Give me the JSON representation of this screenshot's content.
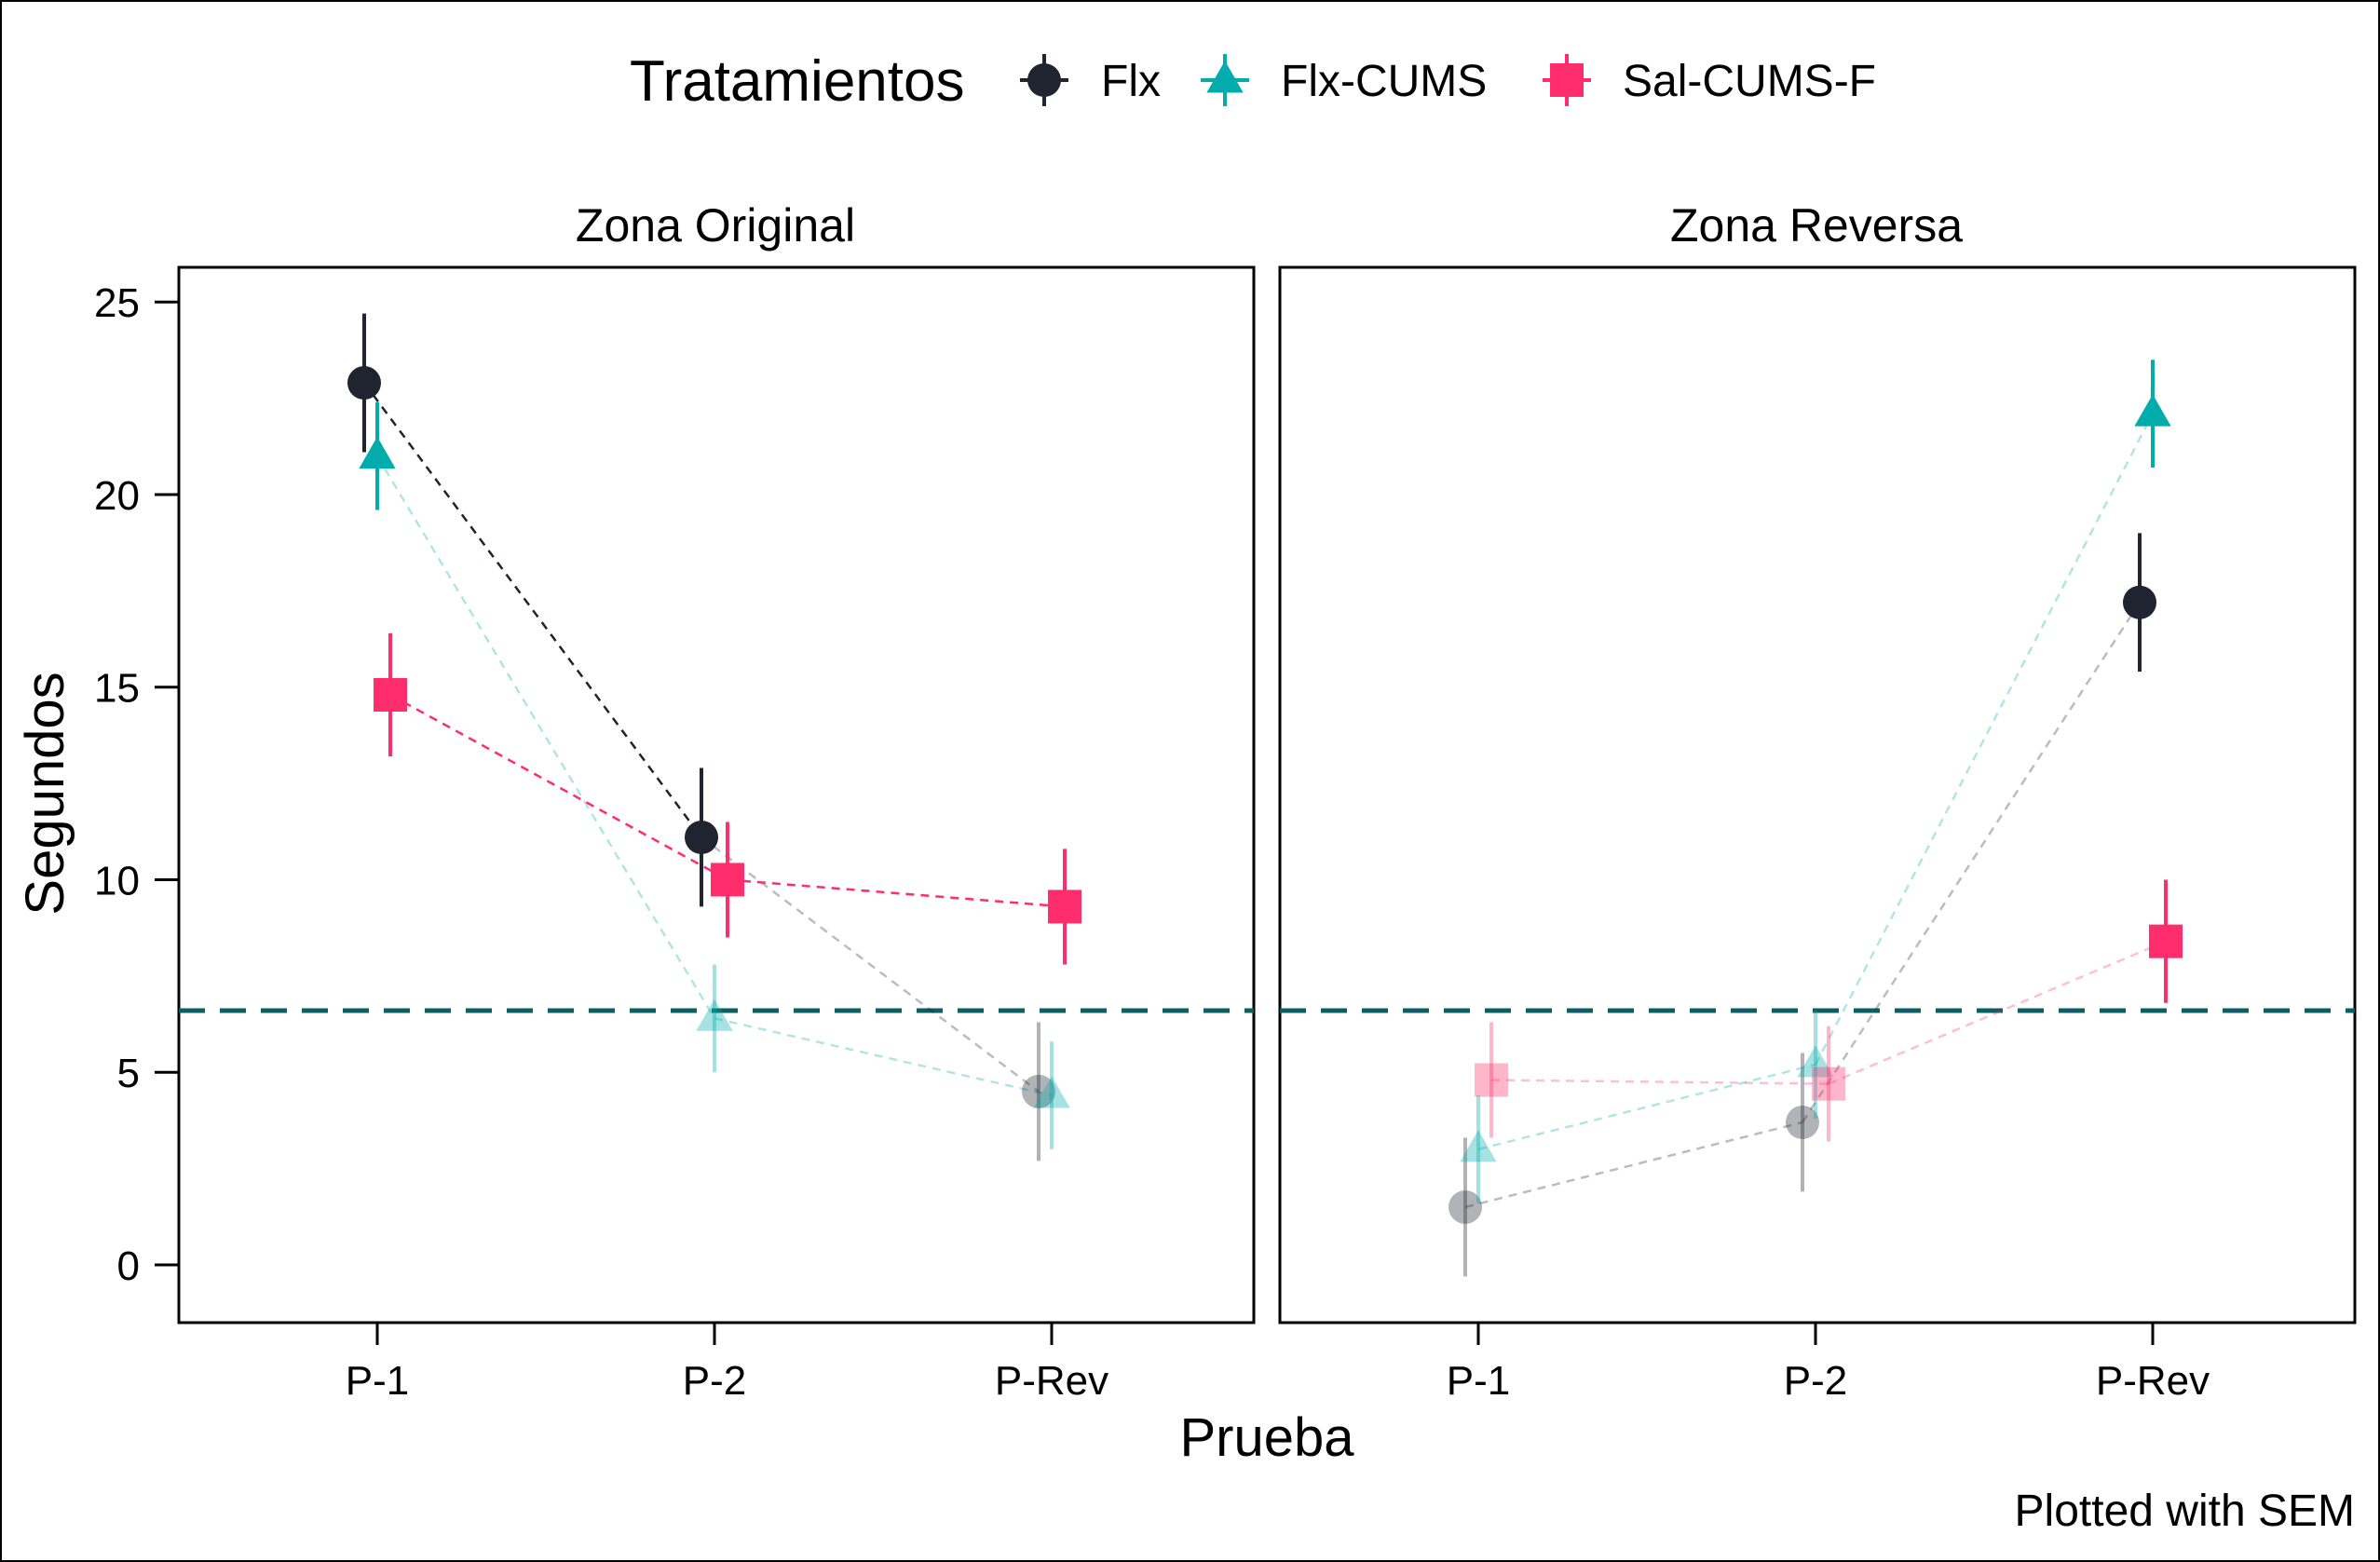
{
  "legend": {
    "title": "Tratamientos",
    "items": [
      {
        "name": "Flx",
        "color": "#1f2430",
        "shape": "circle"
      },
      {
        "name": "Flx-CUMS",
        "color": "#00acac",
        "shape": "triangle"
      },
      {
        "name": "Sal-CUMS-F",
        "color": "#ff2d6b",
        "shape": "square"
      }
    ]
  },
  "caption": "Plotted with SEM",
  "reference_line": {
    "y": 6.6,
    "color": "#0c5e63",
    "style": "dashed"
  },
  "chart_data": {
    "type": "scatter",
    "xlabel": "Prueba",
    "ylabel": "Segundos",
    "ylim": [
      -1.5,
      25.9
    ],
    "yticks": [
      0,
      5,
      10,
      15,
      20,
      25
    ],
    "categories": [
      "P-1",
      "P-2",
      "P-Rev"
    ],
    "error_bars": "SEM",
    "panels": [
      {
        "title": "Zona Original",
        "series": [
          {
            "name": "Flx",
            "values": [
              22.9,
              11.1,
              4.5
            ],
            "sem": [
              1.8,
              1.8,
              1.8
            ],
            "faded": [
              false,
              false,
              true
            ]
          },
          {
            "name": "Flx-CUMS",
            "values": [
              21.0,
              6.4,
              4.4
            ],
            "sem": [
              1.4,
              1.4,
              1.4
            ],
            "faded": [
              false,
              true,
              true
            ]
          },
          {
            "name": "Sal-CUMS-F",
            "values": [
              14.8,
              10.0,
              9.3
            ],
            "sem": [
              1.6,
              1.5,
              1.5
            ],
            "faded": [
              false,
              false,
              false
            ]
          }
        ]
      },
      {
        "title": "Zona Reversa",
        "series": [
          {
            "name": "Flx",
            "values": [
              1.5,
              3.7,
              17.2
            ],
            "sem": [
              1.8,
              1.8,
              1.8
            ],
            "faded": [
              true,
              true,
              false
            ]
          },
          {
            "name": "Flx-CUMS",
            "values": [
              3.0,
              5.2,
              22.1
            ],
            "sem": [
              1.4,
              1.4,
              1.4
            ],
            "faded": [
              true,
              true,
              false
            ]
          },
          {
            "name": "Sal-CUMS-F",
            "values": [
              4.8,
              4.7,
              8.4
            ],
            "sem": [
              1.5,
              1.5,
              1.6
            ],
            "faded": [
              true,
              true,
              false
            ]
          }
        ]
      }
    ]
  }
}
